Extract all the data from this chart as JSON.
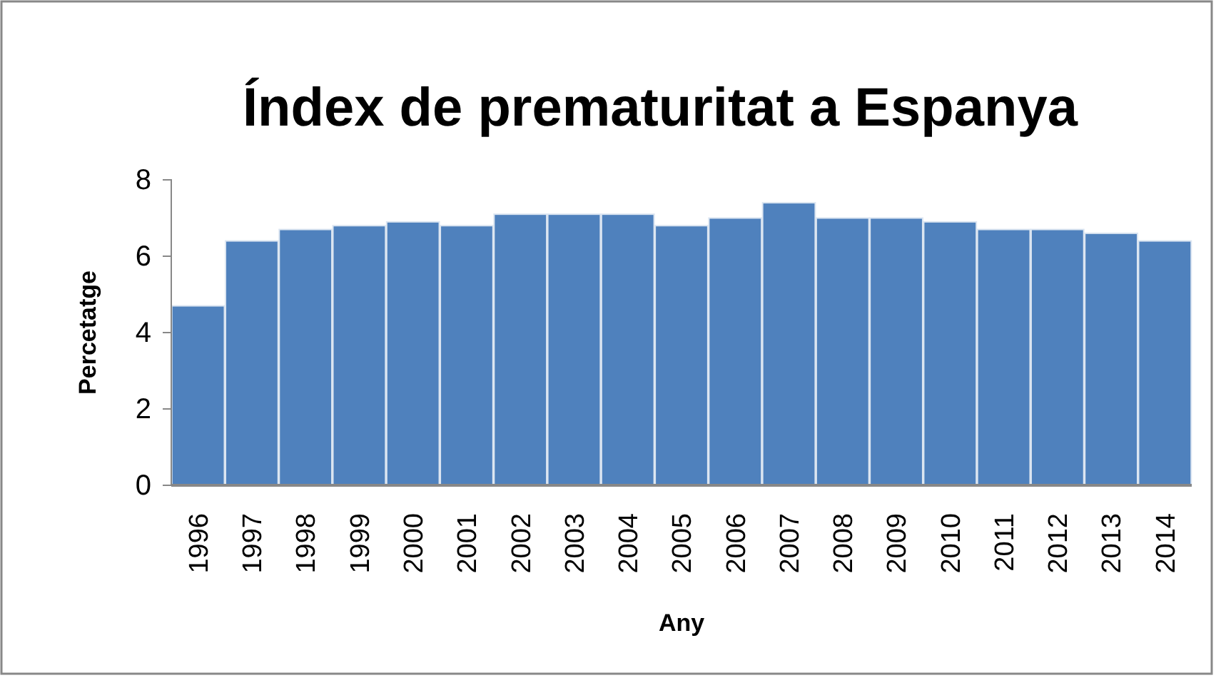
{
  "chart_data": {
    "type": "bar",
    "title": "Índex de prematuritat a Espanya",
    "xlabel": "Any",
    "ylabel": "Percetatge",
    "categories": [
      "1996",
      "1997",
      "1998",
      "1999",
      "2000",
      "2001",
      "2002",
      "2003",
      "2004",
      "2005",
      "2006",
      "2007",
      "2008",
      "2009",
      "2010",
      "2011",
      "2012",
      "2013",
      "2014"
    ],
    "values": [
      4.7,
      6.4,
      6.7,
      6.8,
      6.9,
      6.8,
      7.1,
      7.1,
      7.1,
      6.8,
      7.0,
      7.4,
      7.0,
      7.0,
      6.9,
      6.7,
      6.7,
      6.6,
      6.4
    ],
    "color": "#4f81bd",
    "ylim": [
      0,
      8
    ],
    "yticks": [
      0,
      2,
      4,
      6,
      8
    ],
    "grid": false
  }
}
